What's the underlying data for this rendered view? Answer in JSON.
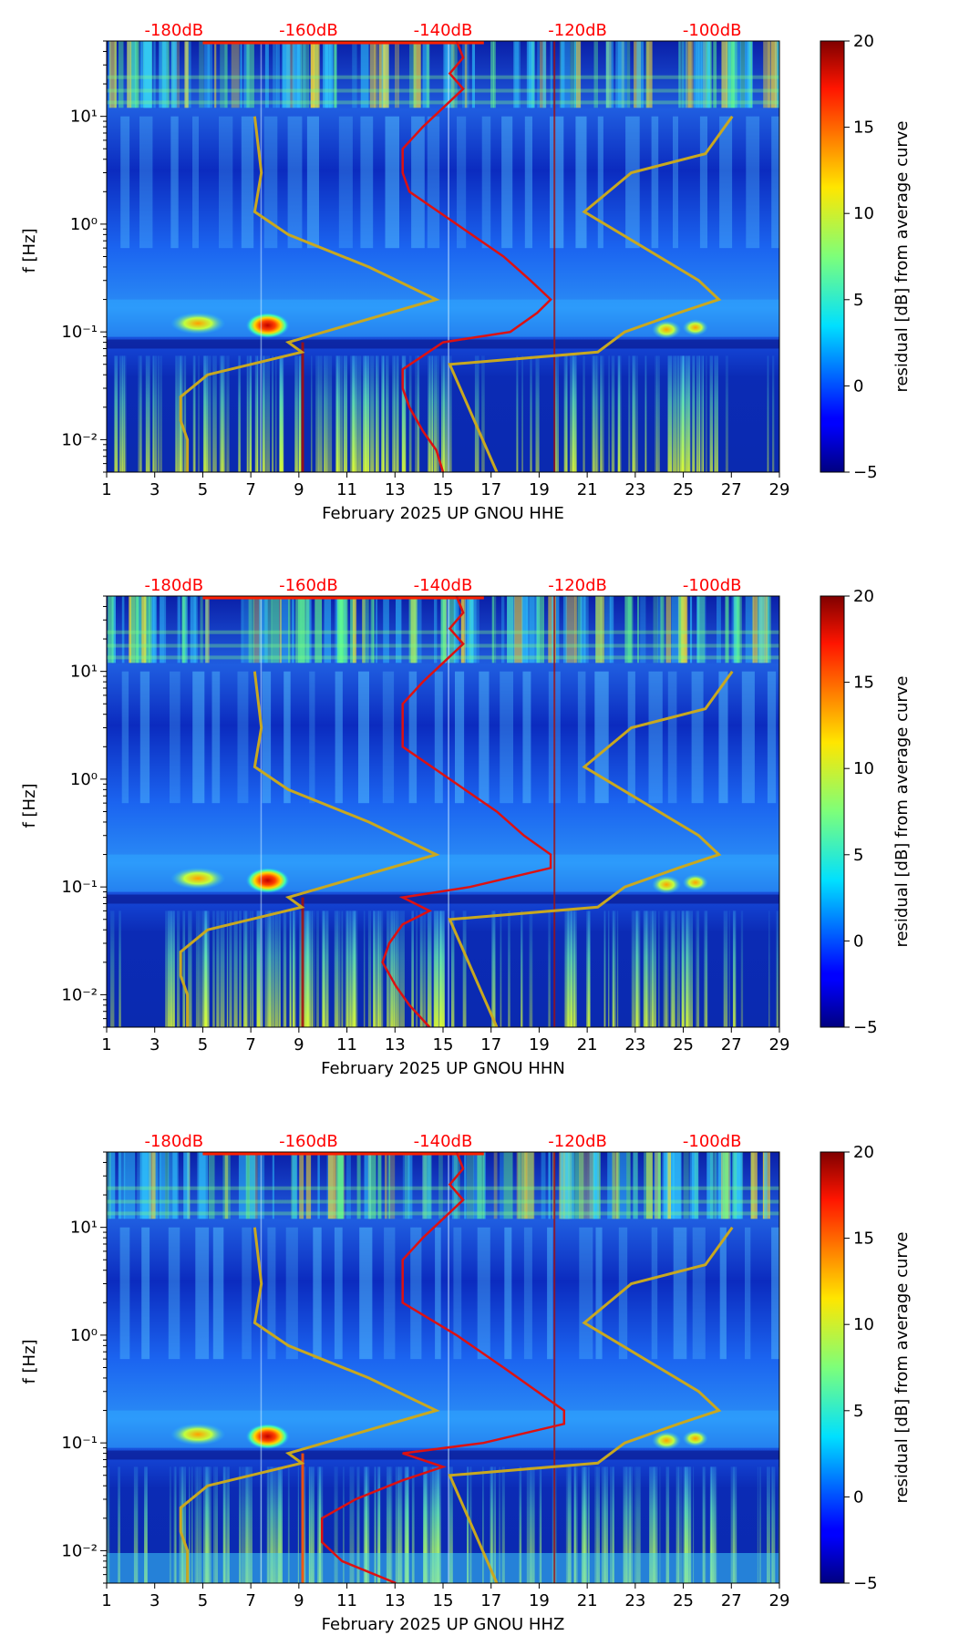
{
  "figure": {
    "top_db_labels": [
      "-180dB",
      "-160dB",
      "-140dB",
      "-120dB",
      "-100dB"
    ],
    "x_ticks": [
      "1",
      "3",
      "5",
      "7",
      "9",
      "11",
      "13",
      "15",
      "17",
      "19",
      "21",
      "23",
      "25",
      "27",
      "29"
    ],
    "y_ticks": [
      "10⁻²",
      "10⁻¹",
      "10⁰",
      "10¹"
    ],
    "y_label": "f [Hz]",
    "colorbar_ticks": [
      "20",
      "15",
      "10",
      "5",
      "0",
      "−5"
    ],
    "colorbar_label": "residual [dB] from average curve",
    "colors": {
      "db_label": "#ff0000",
      "psd_curve": "#dd1111",
      "noise_model": "#c8a820"
    }
  },
  "chart_data": [
    {
      "type": "heatmap",
      "title": "",
      "xlabel": "February 2025 UP GNOU  HHE",
      "ylabel": "f [Hz]",
      "x_range": [
        1,
        29
      ],
      "y_range": [
        0.005,
        50
      ],
      "y_scale": "log",
      "colorbar": {
        "label": "residual [dB] from average curve",
        "range": [
          -5,
          20
        ]
      },
      "top_axis": {
        "label": "dB",
        "values": [
          -180,
          -160,
          -140,
          -120,
          -100
        ]
      },
      "psd_curve": [
        {
          "f": 0.005,
          "db": -140
        },
        {
          "f": 0.008,
          "db": -141
        },
        {
          "f": 0.012,
          "db": -143
        },
        {
          "f": 0.02,
          "db": -145
        },
        {
          "f": 0.03,
          "db": -146
        },
        {
          "f": 0.045,
          "db": -146
        },
        {
          "f": 0.06,
          "db": -143
        },
        {
          "f": 0.08,
          "db": -140
        },
        {
          "f": 0.1,
          "db": -130
        },
        {
          "f": 0.15,
          "db": -126
        },
        {
          "f": 0.2,
          "db": -124
        },
        {
          "f": 0.3,
          "db": -127
        },
        {
          "f": 0.5,
          "db": -131
        },
        {
          "f": 1,
          "db": -138
        },
        {
          "f": 2,
          "db": -145
        },
        {
          "f": 3,
          "db": -146
        },
        {
          "f": 5,
          "db": -146
        },
        {
          "f": 8,
          "db": -143
        },
        {
          "f": 12,
          "db": -140
        },
        {
          "f": 18,
          "db": -137
        },
        {
          "f": 25,
          "db": -139
        },
        {
          "f": 35,
          "db": -137
        },
        {
          "f": 50,
          "db": -138
        }
      ]
    },
    {
      "type": "heatmap",
      "title": "",
      "xlabel": "February 2025 UP GNOU  HHN",
      "ylabel": "f [Hz]",
      "x_range": [
        1,
        29
      ],
      "y_range": [
        0.005,
        50
      ],
      "y_scale": "log",
      "colorbar": {
        "label": "residual [dB] from average curve",
        "range": [
          -5,
          20
        ]
      },
      "top_axis": {
        "label": "dB",
        "values": [
          -180,
          -160,
          -140,
          -120,
          -100
        ]
      },
      "psd_curve": [
        {
          "f": 0.005,
          "db": -142
        },
        {
          "f": 0.008,
          "db": -145
        },
        {
          "f": 0.012,
          "db": -147
        },
        {
          "f": 0.02,
          "db": -149
        },
        {
          "f": 0.03,
          "db": -148
        },
        {
          "f": 0.045,
          "db": -146
        },
        {
          "f": 0.06,
          "db": -142
        },
        {
          "f": 0.08,
          "db": -146
        },
        {
          "f": 0.1,
          "db": -136
        },
        {
          "f": 0.15,
          "db": -124
        },
        {
          "f": 0.2,
          "db": -124
        },
        {
          "f": 0.3,
          "db": -128
        },
        {
          "f": 0.5,
          "db": -132
        },
        {
          "f": 1,
          "db": -139
        },
        {
          "f": 2,
          "db": -146
        },
        {
          "f": 3,
          "db": -146
        },
        {
          "f": 5,
          "db": -146
        },
        {
          "f": 8,
          "db": -143
        },
        {
          "f": 12,
          "db": -140
        },
        {
          "f": 18,
          "db": -137
        },
        {
          "f": 25,
          "db": -139
        },
        {
          "f": 35,
          "db": -137
        },
        {
          "f": 50,
          "db": -138
        }
      ]
    },
    {
      "type": "heatmap",
      "title": "",
      "xlabel": "February 2025 UP GNOU  HHZ",
      "ylabel": "f [Hz]",
      "x_range": [
        1,
        29
      ],
      "y_range": [
        0.005,
        50
      ],
      "y_scale": "log",
      "colorbar": {
        "label": "residual [dB] from average curve",
        "range": [
          -5,
          20
        ]
      },
      "top_axis": {
        "label": "dB",
        "values": [
          -180,
          -160,
          -140,
          -120,
          -100
        ]
      },
      "psd_curve": [
        {
          "f": 0.005,
          "db": -147
        },
        {
          "f": 0.008,
          "db": -155
        },
        {
          "f": 0.012,
          "db": -158
        },
        {
          "f": 0.02,
          "db": -158
        },
        {
          "f": 0.03,
          "db": -153
        },
        {
          "f": 0.045,
          "db": -146
        },
        {
          "f": 0.06,
          "db": -140
        },
        {
          "f": 0.08,
          "db": -146
        },
        {
          "f": 0.1,
          "db": -134
        },
        {
          "f": 0.15,
          "db": -122
        },
        {
          "f": 0.2,
          "db": -122
        },
        {
          "f": 0.3,
          "db": -126
        },
        {
          "f": 0.5,
          "db": -131
        },
        {
          "f": 1,
          "db": -138
        },
        {
          "f": 2,
          "db": -146
        },
        {
          "f": 3,
          "db": -146
        },
        {
          "f": 5,
          "db": -146
        },
        {
          "f": 8,
          "db": -143
        },
        {
          "f": 12,
          "db": -140
        },
        {
          "f": 18,
          "db": -137
        },
        {
          "f": 25,
          "db": -139
        },
        {
          "f": 35,
          "db": -137
        },
        {
          "f": 50,
          "db": -138
        }
      ]
    }
  ],
  "noise_models": {
    "low": [
      {
        "f": 0.005,
        "db": -178
      },
      {
        "f": 0.01,
        "db": -178
      },
      {
        "f": 0.015,
        "db": -179
      },
      {
        "f": 0.025,
        "db": -179
      },
      {
        "f": 0.04,
        "db": -175
      },
      {
        "f": 0.065,
        "db": -161
      },
      {
        "f": 0.08,
        "db": -163
      },
      {
        "f": 0.2,
        "db": -141
      },
      {
        "f": 0.4,
        "db": -151
      },
      {
        "f": 0.8,
        "db": -163
      },
      {
        "f": 1.3,
        "db": -168
      },
      {
        "f": 3,
        "db": -167
      },
      {
        "f": 10,
        "db": -168
      }
    ],
    "high": [
      {
        "f": 0.005,
        "db": -132
      },
      {
        "f": 0.05,
        "db": -139
      },
      {
        "f": 0.065,
        "db": -117
      },
      {
        "f": 0.1,
        "db": -113
      },
      {
        "f": 0.15,
        "db": -105
      },
      {
        "f": 0.2,
        "db": -99
      },
      {
        "f": 0.3,
        "db": -102
      },
      {
        "f": 1.3,
        "db": -119
      },
      {
        "f": 3,
        "db": -112
      },
      {
        "f": 4.5,
        "db": -101
      },
      {
        "f": 10,
        "db": -97
      }
    ]
  }
}
